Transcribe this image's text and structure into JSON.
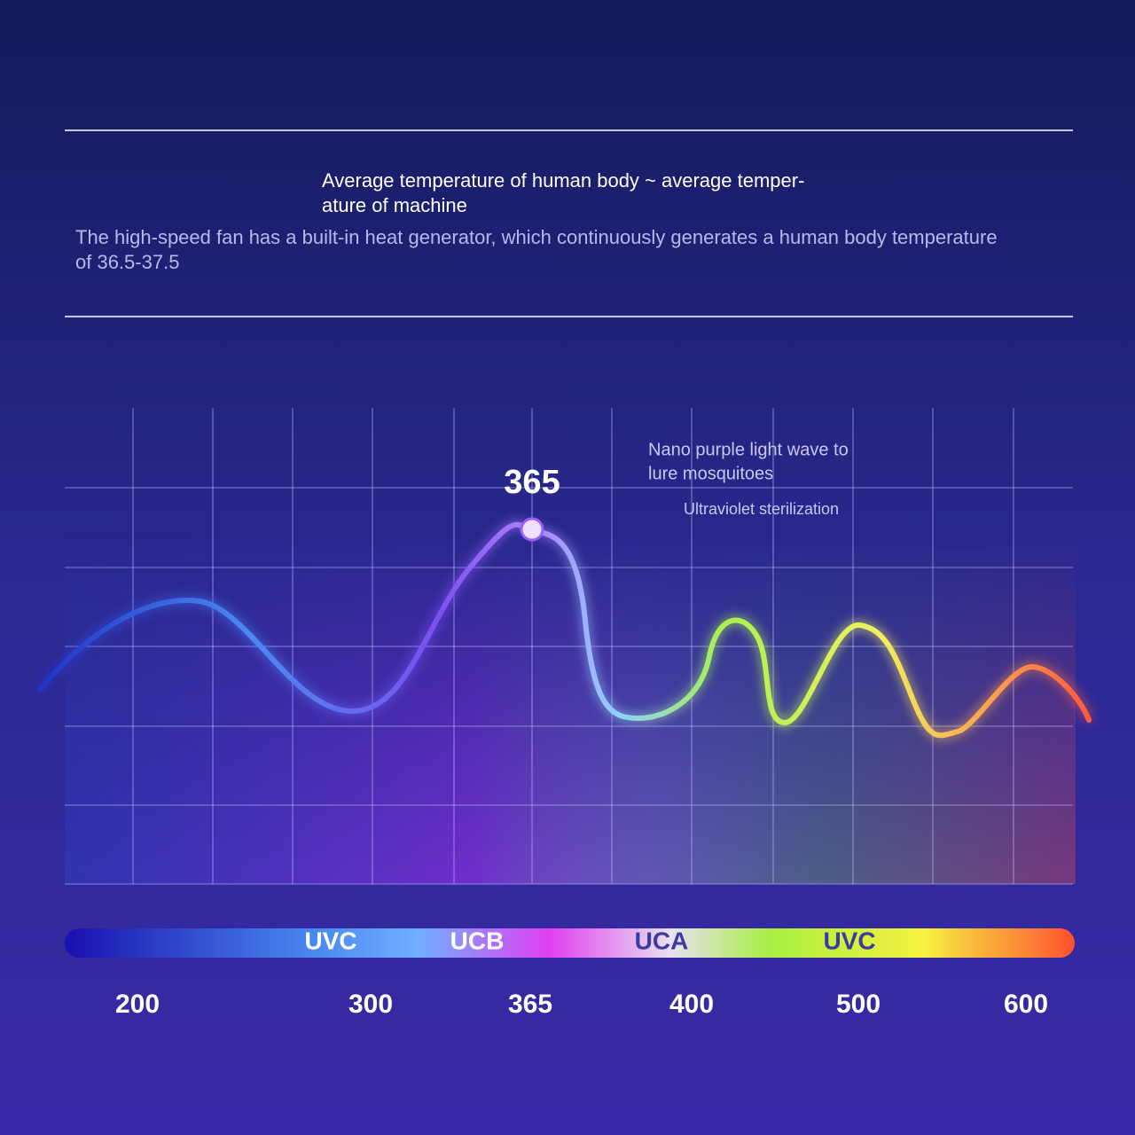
{
  "header": {
    "title_lines": [
      "Average temperature of human body ~ average temper-",
      "ature of machine"
    ],
    "description_lines": [
      "The high-speed fan has a built-in heat generator, which continuously generates a human body temperature",
      "of 36.5-37.5"
    ]
  },
  "spectrum": {
    "peak_label": "365",
    "annotation_lines": [
      "Nano purple light wave to",
      "lure mosquitoes"
    ],
    "sub_annotation": "Ultraviolet sterilization",
    "bands": [
      "UVC",
      "UCB",
      "UCA",
      "UVC"
    ],
    "axis_labels": [
      "200",
      "300",
      "365",
      "400",
      "500",
      "600"
    ]
  }
}
